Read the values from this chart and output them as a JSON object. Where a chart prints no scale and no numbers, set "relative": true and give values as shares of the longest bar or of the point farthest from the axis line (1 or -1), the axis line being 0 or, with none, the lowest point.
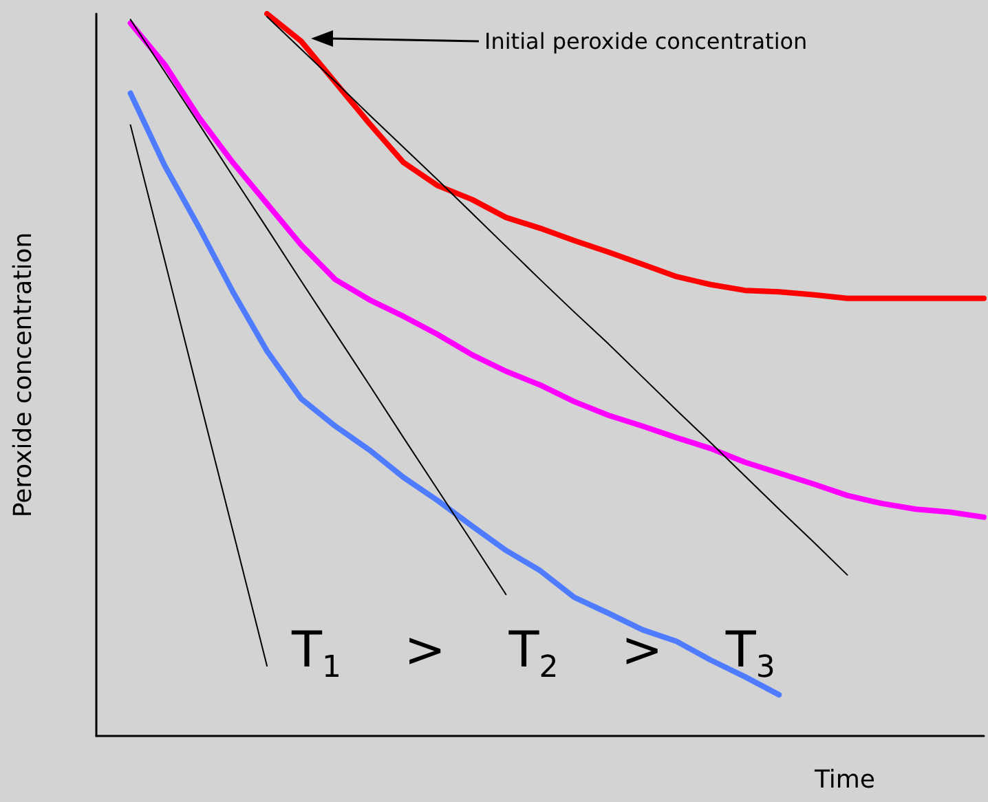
{
  "chart_data": {
    "type": "line",
    "relative": true,
    "xlabel": "Time",
    "ylabel": "Peroxide concentration",
    "categories": [
      null,
      null,
      null,
      null,
      null,
      null,
      null,
      null,
      null,
      null,
      null,
      null,
      null,
      null,
      null,
      null,
      null,
      null,
      null,
      null,
      null,
      null,
      null,
      null,
      null,
      null,
      null
    ],
    "series": [
      {
        "color": "#4f7cff",
        "values": [
          null,
          0.89,
          0.79,
          0.705,
          0.615,
          0.533,
          0.467,
          0.429,
          0.396,
          0.358,
          0.326,
          0.291,
          0.257,
          0.229,
          0.192,
          0.17,
          0.147,
          0.131,
          0.105,
          0.082,
          0.057,
          null,
          null,
          null,
          null,
          null,
          null
        ]
      },
      {
        "color": "#ff00ff",
        "values": [
          null,
          0.987,
          0.93,
          0.857,
          0.794,
          0.737,
          0.68,
          0.632,
          0.604,
          0.581,
          0.556,
          0.528,
          0.505,
          0.486,
          0.463,
          0.444,
          0.429,
          0.413,
          0.398,
          0.379,
          0.364,
          0.349,
          0.333,
          0.322,
          0.314,
          0.31,
          0.303
        ]
      },
      {
        "color": "#ff0000",
        "values": [
          null,
          null,
          null,
          null,
          null,
          1,
          0.962,
          0.905,
          0.848,
          0.794,
          0.762,
          0.743,
          0.718,
          0.703,
          0.686,
          0.67,
          0.653,
          0.636,
          0.625,
          0.617,
          0.615,
          0.611,
          0.606,
          0.606,
          0.606,
          0.606,
          0.606
        ]
      },
      {
        "color": "#000000",
        "line_style": "solid",
        "values": [
          null,
          0.846,
          0.659,
          0.471,
          0.284,
          0.097,
          null,
          null,
          null,
          null,
          null,
          null,
          null,
          null,
          null,
          null,
          null,
          null,
          null,
          null,
          null,
          null,
          null,
          null,
          null,
          null,
          null
        ]
      },
      {
        "color": "#000000",
        "line_style": "solid",
        "values": [
          null,
          0.992,
          0.92,
          0.848,
          0.775,
          0.703,
          0.63,
          0.558,
          0.486,
          0.413,
          0.341,
          0.269,
          0.196,
          null,
          null,
          null,
          null,
          null,
          null,
          null,
          null,
          null,
          null,
          null,
          null,
          null,
          null
        ]
      },
      {
        "color": "#000000",
        "line_style": "solid",
        "values": [
          null,
          null,
          null,
          null,
          null,
          0.996,
          0.951,
          0.906,
          0.86,
          0.815,
          0.77,
          0.724,
          0.678,
          0.632,
          0.587,
          0.543,
          0.497,
          0.451,
          0.406,
          0.36,
          0.314,
          0.269,
          0.223,
          null,
          null,
          null,
          null
        ]
      }
    ],
    "annotations": [
      "Initial peroxide concentration",
      "T$_{1}$    >    T$_{2}$    >    T$_{3}$"
    ],
    "grid": false,
    "marker": "none"
  }
}
